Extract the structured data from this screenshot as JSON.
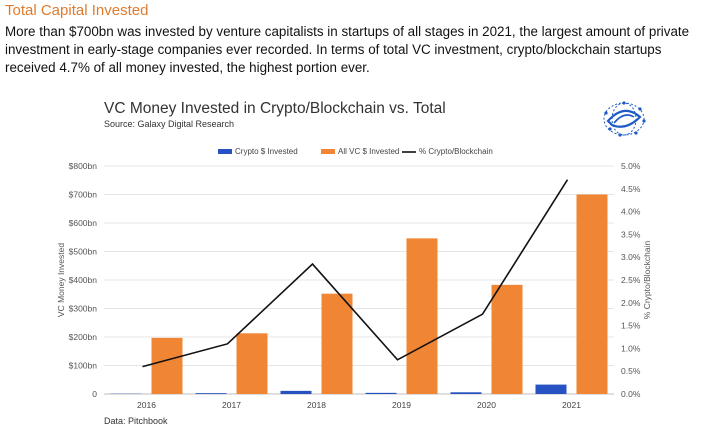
{
  "section": {
    "title": "Total Capital Invested",
    "intro": "More than $700bn was invested by venture capitalists in startups of all stages in 2021, the largest amount of private investment in early-stage companies ever recorded. In terms of total VC investment, crypto/blockchain startups received 4.7% of all money invested, the highest portion ever."
  },
  "chart_header": {
    "title": "VC Money Invested in Crypto/Blockchain vs. Total",
    "source": "Source: Galaxy Digital Research",
    "data_source": "Data: Pitchbook"
  },
  "logo_icon": "network-globe-icon",
  "chart_data": {
    "type": "bar",
    "categories": [
      "2016",
      "2017",
      "2018",
      "2019",
      "2020",
      "2021"
    ],
    "series": [
      {
        "name": "Crypto $ Invested",
        "type": "bar",
        "axis": "left",
        "color": "#2752C2",
        "values": [
          1,
          3,
          11,
          4,
          6,
          33
        ]
      },
      {
        "name": "All VC $ Invested",
        "type": "bar",
        "axis": "left",
        "color": "#F08533",
        "values": [
          197,
          213,
          352,
          546,
          383,
          700
        ]
      },
      {
        "name": "% Crypto/Blockchain",
        "type": "line",
        "axis": "right",
        "color": "#111111",
        "values": [
          0.6,
          1.1,
          2.85,
          0.75,
          1.75,
          4.7
        ]
      }
    ],
    "ylabel": "VC Money Invested",
    "y2label": "% Crypto/Blockchain",
    "ylim": [
      0,
      800
    ],
    "y2lim": [
      0,
      5
    ],
    "yticks": [
      "0",
      "$100bn",
      "$200bn",
      "$300bn",
      "$400bn",
      "$500bn",
      "$600bn",
      "$700bn",
      "$800bn"
    ],
    "y2ticks": [
      "0.0%",
      "0.5%",
      "1.0%",
      "1.5%",
      "2.0%",
      "2.5%",
      "3.0%",
      "3.5%",
      "4.0%",
      "4.5%",
      "5.0%"
    ],
    "grid": true,
    "legend_position": "top-center"
  }
}
